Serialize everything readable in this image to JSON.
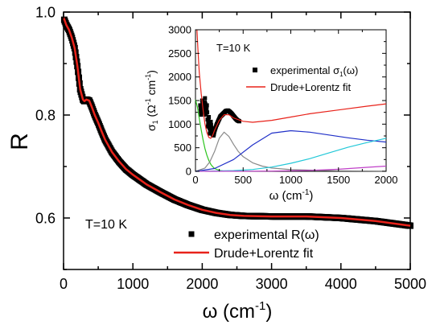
{
  "chart_data": [
    {
      "type": "scatter",
      "role": "main",
      "ylabel": "R",
      "xlabel": {
        "base": "ω (cm",
        "sup": "-1",
        "tail": ")"
      },
      "xlim": [
        0,
        5000
      ],
      "ylim": [
        0.5,
        1.0
      ],
      "x_ticks": [
        "0",
        "1000",
        "2000",
        "3000",
        "4000",
        "5000"
      ],
      "y_ticks": [
        "0.6",
        "0.8",
        "1.0"
      ],
      "annotation": "T=10 K",
      "legend": {
        "position": "bottom-right",
        "entries": [
          {
            "label": "experimental R(ω)",
            "marker": "square",
            "color": "#000000"
          },
          {
            "label": "Drude+Lorentz fit",
            "marker": "line",
            "color": "#e8221a"
          }
        ]
      },
      "series": [
        {
          "name": "experimental R(ω)",
          "style": "markers",
          "color": "#000000",
          "x": [
            10,
            40,
            80,
            120,
            160,
            200,
            240,
            280,
            300,
            330,
            370,
            410,
            450,
            500,
            550,
            600,
            700,
            800,
            900,
            1000,
            1200,
            1400,
            1600,
            1800,
            2000,
            2200,
            2400,
            2600,
            3000,
            3500,
            4000,
            4500,
            5000
          ],
          "y": [
            0.985,
            0.975,
            0.965,
            0.95,
            0.93,
            0.895,
            0.85,
            0.83,
            0.827,
            0.83,
            0.828,
            0.815,
            0.8,
            0.785,
            0.768,
            0.752,
            0.728,
            0.71,
            0.695,
            0.684,
            0.665,
            0.65,
            0.636,
            0.625,
            0.616,
            0.61,
            0.606,
            0.604,
            0.603,
            0.603,
            0.6,
            0.594,
            0.585
          ]
        },
        {
          "name": "Drude+Lorentz fit",
          "style": "line",
          "color": "#e8221a",
          "x": [
            0,
            40,
            80,
            120,
            160,
            200,
            240,
            280,
            300,
            330,
            370,
            410,
            450,
            500,
            550,
            600,
            700,
            800,
            900,
            1000,
            1200,
            1400,
            1600,
            1800,
            2000,
            2200,
            2400,
            2600,
            3000,
            3500,
            4000,
            4500,
            5000
          ],
          "y": [
            0.99,
            0.975,
            0.965,
            0.95,
            0.93,
            0.895,
            0.85,
            0.83,
            0.827,
            0.83,
            0.828,
            0.815,
            0.8,
            0.785,
            0.768,
            0.752,
            0.728,
            0.71,
            0.695,
            0.684,
            0.665,
            0.65,
            0.636,
            0.625,
            0.616,
            0.61,
            0.606,
            0.604,
            0.603,
            0.603,
            0.6,
            0.594,
            0.585
          ]
        }
      ]
    },
    {
      "type": "line",
      "role": "inset",
      "ylabel": {
        "sigma": "σ",
        "sub": "1",
        "open": " (Ω",
        "sup1": "-1",
        "mid": " cm",
        "sup2": "-1",
        "close": ")"
      },
      "xlabel": {
        "base": "ω (cm",
        "sup": "-1",
        "tail": ")"
      },
      "xlim": [
        0,
        2000
      ],
      "ylim": [
        0,
        3000
      ],
      "x_ticks": [
        "0",
        "500",
        "1000",
        "1500",
        "2000"
      ],
      "y_ticks": [
        "0",
        "500",
        "1000",
        "1500",
        "2000",
        "2500",
        "3000"
      ],
      "annotation": "T=10 K",
      "legend": {
        "position": "top-right",
        "entries": [
          {
            "label": "experimental",
            "sigma": "σ",
            "sub": "1",
            "arg": "(ω)",
            "marker": "square",
            "color": "#000000"
          },
          {
            "label": "Drude+Lorentz fit",
            "marker": "line",
            "color": "#e8221a"
          }
        ]
      },
      "series": [
        {
          "name": "experimental σ1(ω)",
          "style": "markers",
          "color": "#000000",
          "x": [
            50,
            60,
            70,
            80,
            90,
            100,
            110,
            120,
            130,
            140,
            150,
            160,
            170,
            180,
            190,
            200,
            220,
            240,
            260,
            280,
            300,
            320,
            340,
            360,
            380,
            400,
            420,
            440,
            460
          ],
          "y": [
            1400,
            1200,
            1500,
            1350,
            1280,
            1550,
            1200,
            1400,
            950,
            1150,
            800,
            1050,
            850,
            780,
            760,
            860,
            980,
            1070,
            1160,
            1200,
            1240,
            1280,
            1290,
            1260,
            1220,
            1170,
            1120,
            1080,
            1060
          ]
        },
        {
          "name": "Drude+Lorentz fit",
          "style": "line",
          "color": "#e8221a",
          "x": [
            15,
            25,
            40,
            60,
            80,
            100,
            120,
            140,
            160,
            180,
            200,
            250,
            300,
            350,
            400,
            500,
            600,
            800,
            1000,
            1200,
            1500,
            1800,
            2000
          ],
          "y": [
            3000,
            2600,
            2100,
            1650,
            1300,
            1000,
            820,
            720,
            700,
            760,
            870,
            1080,
            1200,
            1200,
            1130,
            1060,
            1040,
            1080,
            1150,
            1220,
            1300,
            1380,
            1430
          ]
        },
        {
          "name": "",
          "style": "line",
          "color": "#2cc41e",
          "x": [
            0,
            20,
            40,
            60,
            80,
            100,
            120,
            140,
            160,
            180,
            200,
            250,
            300
          ],
          "y": [
            1520,
            1360,
            1120,
            880,
            660,
            480,
            340,
            230,
            150,
            100,
            60,
            20,
            5
          ]
        },
        {
          "name": "",
          "style": "line",
          "color": "#8a8a8a",
          "x": [
            0,
            100,
            150,
            200,
            250,
            300,
            350,
            400,
            450,
            500,
            600,
            700,
            800,
            1000,
            1500,
            2000
          ],
          "y": [
            0,
            70,
            200,
            420,
            700,
            830,
            740,
            570,
            420,
            310,
            180,
            110,
            70,
            35,
            12,
            5
          ]
        },
        {
          "name": "",
          "style": "line",
          "color": "#2030c8",
          "x": [
            0,
            200,
            400,
            600,
            800,
            1000,
            1200,
            1400,
            1600,
            1800,
            2000
          ],
          "y": [
            0,
            60,
            250,
            560,
            810,
            860,
            830,
            770,
            710,
            660,
            620
          ]
        },
        {
          "name": "",
          "style": "line",
          "color": "#22c8d8",
          "x": [
            0,
            400,
            600,
            800,
            1000,
            1200,
            1400,
            1600,
            1800,
            2000
          ],
          "y": [
            0,
            15,
            40,
            90,
            170,
            270,
            390,
            510,
            610,
            700
          ]
        },
        {
          "name": "",
          "style": "line",
          "color": "#c040c8",
          "x": [
            0,
            800,
            1200,
            1500,
            1800,
            2000
          ],
          "y": [
            0,
            5,
            20,
            45,
            85,
            110
          ]
        }
      ]
    }
  ]
}
